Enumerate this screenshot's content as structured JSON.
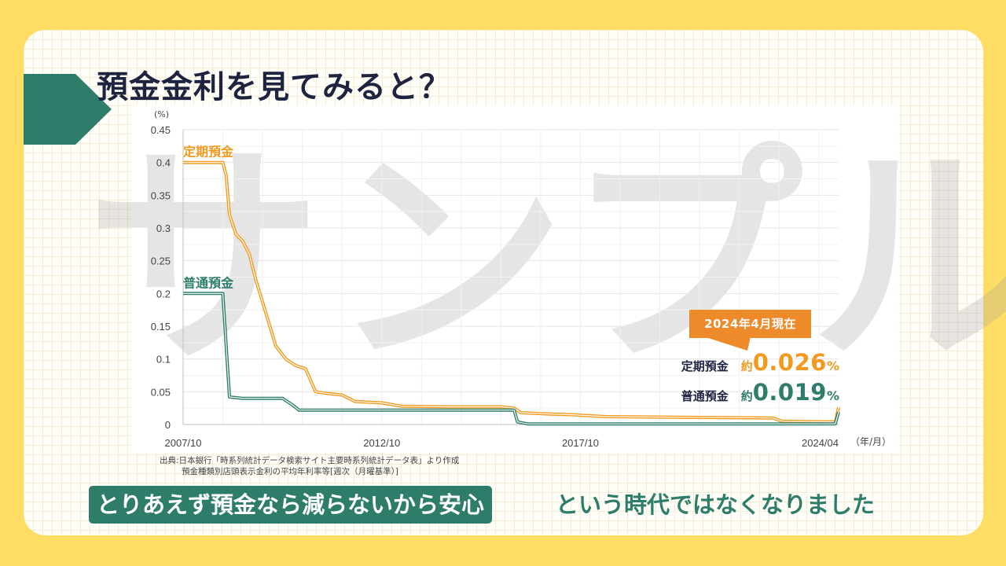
{
  "title": "預金金利を見てみると？",
  "watermark": "サンプル",
  "colors": {
    "background": "#FFDC64",
    "accent_green": "#2E7D6B",
    "accent_orange": "#F39A1E",
    "callout_orange": "#EE8A2A",
    "title_navy": "#1E2440"
  },
  "callout": {
    "label": "2024年4月現在",
    "teiki": {
      "label": "定期預金",
      "prefix": "約",
      "value": "0.026",
      "unit": "%"
    },
    "futsu": {
      "label": "普通預金",
      "prefix": "約",
      "value": "0.019",
      "unit": "%"
    }
  },
  "source": {
    "line1": "出典:日本銀行「時系列統計データ検索サイト主要時系列統計データ表」より作成",
    "line2": "預金種類別店頭表示金利の平均年利率等[週次（月曜基準）]"
  },
  "bottom": {
    "highlight": "とりあえず預金なら減らないから安心",
    "rest": "という時代ではなくなりました"
  },
  "chart_data": {
    "type": "line",
    "ylabel": "(%)",
    "xunit": "（年/月）",
    "ylim": [
      0,
      0.45
    ],
    "yticks": [
      "0.45",
      "0.4",
      "0.35",
      "0.3",
      "0.25",
      "0.2",
      "0.15",
      "0.1",
      "0.05",
      "0"
    ],
    "ytick_values": [
      0.45,
      0.4,
      0.35,
      0.3,
      0.25,
      0.2,
      0.15,
      0.1,
      0.05,
      0
    ],
    "xlim": [
      "2007-10",
      "2024-04"
    ],
    "xticks": [
      {
        "label": "2007/10",
        "x": "2007-10"
      },
      {
        "label": "2012/10",
        "x": "2012-10"
      },
      {
        "label": "2017/10",
        "x": "2017-10"
      },
      {
        "label": "2024/04",
        "x": "2024-04"
      }
    ],
    "grid": true,
    "series": [
      {
        "name": "定期預金",
        "color": "#F39A1E",
        "points": [
          [
            "2007-10",
            0.4
          ],
          [
            "2008-10",
            0.4
          ],
          [
            "2008-11",
            0.38
          ],
          [
            "2008-12",
            0.32
          ],
          [
            "2009-02",
            0.29
          ],
          [
            "2009-04",
            0.28
          ],
          [
            "2009-06",
            0.26
          ],
          [
            "2009-08",
            0.22
          ],
          [
            "2009-11",
            0.17
          ],
          [
            "2010-02",
            0.12
          ],
          [
            "2010-05",
            0.1
          ],
          [
            "2010-08",
            0.09
          ],
          [
            "2010-11",
            0.085
          ],
          [
            "2011-02",
            0.05
          ],
          [
            "2011-06",
            0.047
          ],
          [
            "2011-10",
            0.045
          ],
          [
            "2012-02",
            0.035
          ],
          [
            "2012-10",
            0.033
          ],
          [
            "2013-04",
            0.028
          ],
          [
            "2014-06",
            0.027
          ],
          [
            "2015-10",
            0.027
          ],
          [
            "2016-02",
            0.025
          ],
          [
            "2016-04",
            0.018
          ],
          [
            "2017-01",
            0.016
          ],
          [
            "2017-07",
            0.015
          ],
          [
            "2018-06",
            0.012
          ],
          [
            "2022-08",
            0.01
          ],
          [
            "2022-11",
            0.005
          ],
          [
            "2024-03",
            0.004
          ],
          [
            "2024-04",
            0.026
          ]
        ]
      },
      {
        "name": "普通預金",
        "color": "#2E7D6B",
        "points": [
          [
            "2007-10",
            0.2
          ],
          [
            "2008-10",
            0.2
          ],
          [
            "2008-11",
            0.12
          ],
          [
            "2008-12",
            0.042
          ],
          [
            "2009-04",
            0.04
          ],
          [
            "2010-04",
            0.04
          ],
          [
            "2010-07",
            0.03
          ],
          [
            "2010-09",
            0.022
          ],
          [
            "2011-06",
            0.022
          ],
          [
            "2016-02",
            0.022
          ],
          [
            "2016-03",
            0.004
          ],
          [
            "2016-06",
            0.001
          ],
          [
            "2024-03",
            0.001
          ],
          [
            "2024-04",
            0.019
          ]
        ]
      }
    ]
  }
}
